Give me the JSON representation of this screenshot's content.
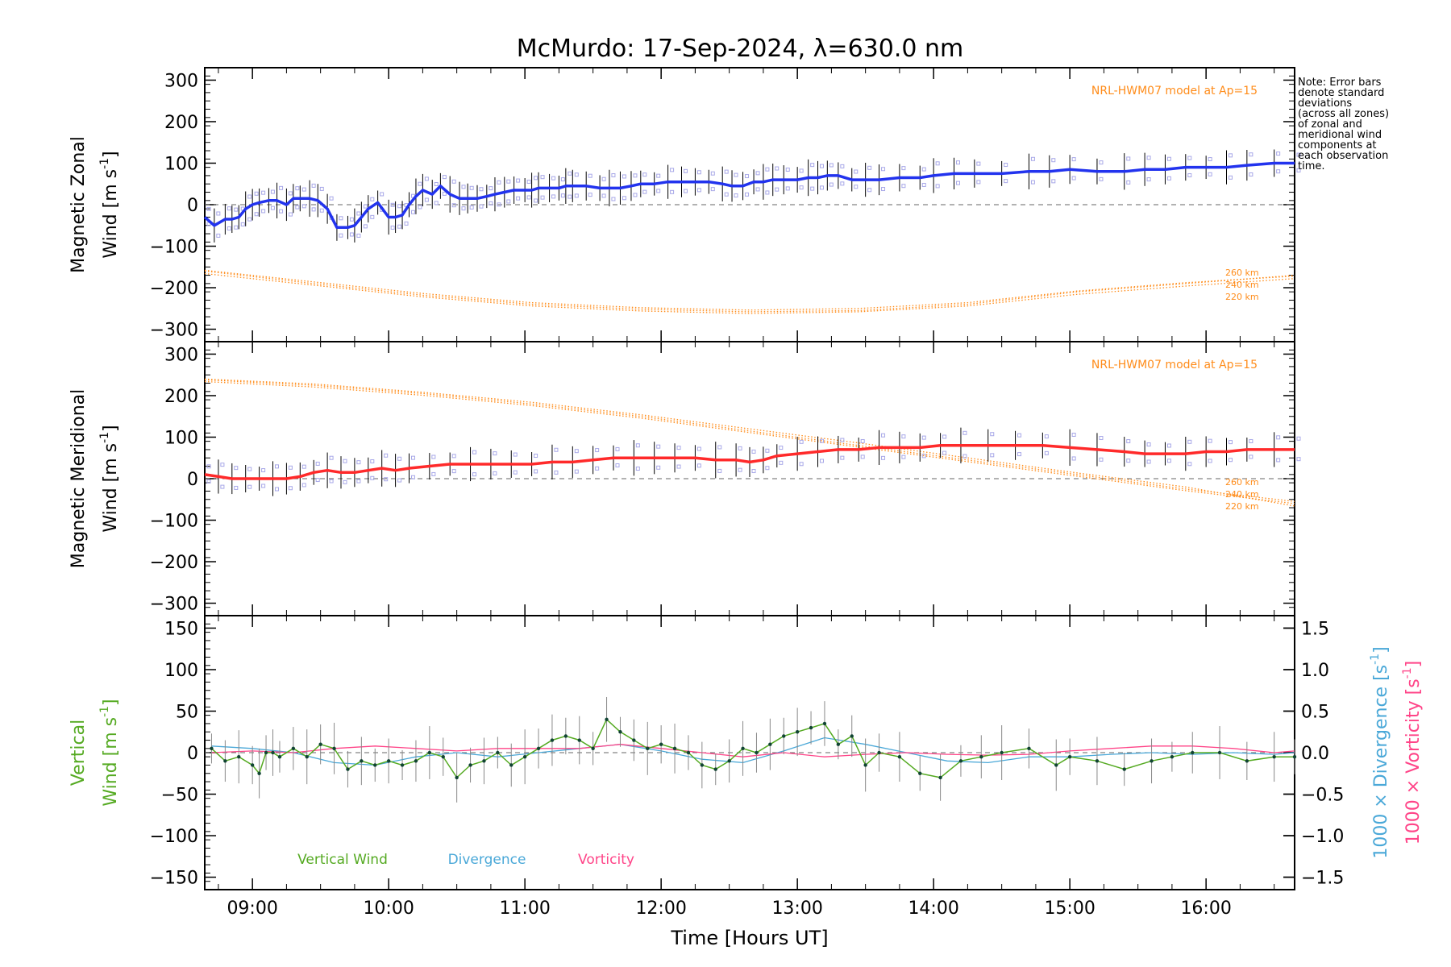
{
  "chart_data": {
    "title": "McMurdo: 17-Sep-2024, λ=630.0 nm",
    "xlabel": "Time [Hours UT]",
    "x_ticks": [
      "09:00",
      "10:00",
      "11:00",
      "12:00",
      "13:00",
      "14:00",
      "15:00",
      "16:00"
    ],
    "x_tick_hours": [
      9,
      10,
      11,
      12,
      13,
      14,
      15,
      16
    ],
    "xlim": [
      8.65,
      16.65
    ],
    "note": "Note: Error bars\ndenote standard\ndeviations\n(across all zones)\nof zonal and\nmeridional wind\ncomponents at\neach observation\ntime.",
    "colors": {
      "zonal": "#2233ee",
      "meridional": "#ff2a2a",
      "model": "#ff8c1a",
      "vertical": "#55aa22",
      "divergence": "#4aa8d8",
      "vorticity": "#ff4488",
      "zone_points": "#a8a8e8",
      "error_bar": "#000000"
    },
    "panels": [
      {
        "id": "zonal",
        "type": "line",
        "ylabel_line1": "Magnetic Zonal",
        "ylabel_line2": "Wind [m s",
        "ylabel_sup": "-1",
        "ylabel_close": "]",
        "ylim": [
          -330,
          330
        ],
        "y_ticks": [
          -300,
          -200,
          -100,
          0,
          100,
          200,
          300
        ],
        "model_label": "NRL-HWM07 model at Ap=15",
        "model_altitudes": [
          "260 km",
          "240 km",
          "220 km"
        ],
        "series": [
          {
            "x": [
              8.65,
              8.72,
              8.8,
              8.85,
              8.9,
              8.95,
              9.0,
              9.05,
              9.12,
              9.18,
              9.25,
              9.3,
              9.35,
              9.42,
              9.48,
              9.55,
              9.62,
              9.7,
              9.75,
              9.8,
              9.85,
              9.92,
              10.0,
              10.05,
              10.1,
              10.15,
              10.2,
              10.25,
              10.32,
              10.38,
              10.45,
              10.52,
              10.58,
              10.65,
              10.72,
              10.78,
              10.85,
              10.92,
              11.0,
              11.05,
              11.1,
              11.18,
              11.25,
              11.3,
              11.35,
              11.45,
              11.55,
              11.62,
              11.7,
              11.78,
              11.85,
              11.95,
              12.05,
              12.15,
              12.25,
              12.35,
              12.45,
              12.52,
              12.6,
              12.68,
              12.75,
              12.82,
              12.9,
              13.0,
              13.08,
              13.15,
              13.22,
              13.3,
              13.4,
              13.5,
              13.6,
              13.75,
              13.9,
              14.0,
              14.15,
              14.3,
              14.5,
              14.7,
              14.85,
              15.0,
              15.2,
              15.4,
              15.55,
              15.7,
              15.85,
              16.0,
              16.15,
              16.3,
              16.5,
              16.65
            ],
            "y": [
              -30,
              -50,
              -35,
              -35,
              -30,
              -10,
              0,
              5,
              10,
              10,
              0,
              15,
              15,
              15,
              10,
              -10,
              -55,
              -55,
              -50,
              -30,
              -10,
              5,
              -30,
              -30,
              -25,
              0,
              20,
              35,
              25,
              45,
              25,
              15,
              15,
              15,
              20,
              25,
              30,
              35,
              35,
              35,
              40,
              40,
              40,
              45,
              45,
              45,
              40,
              40,
              40,
              45,
              50,
              50,
              55,
              55,
              55,
              55,
              50,
              45,
              45,
              55,
              55,
              60,
              60,
              60,
              65,
              65,
              70,
              70,
              60,
              60,
              60,
              65,
              65,
              70,
              75,
              75,
              75,
              80,
              80,
              85,
              80,
              80,
              85,
              85,
              90,
              90,
              90,
              95,
              100,
              100
            ],
            "name": ""
          }
        ],
        "model_curves": [
          {
            "altitude": "260 km",
            "y": [
              -160,
              -190,
              -218,
              -240,
              -252,
              -258,
              -255,
              -240,
              -210,
              -190,
              -170
            ]
          },
          {
            "altitude": "240 km",
            "y": [
              -158,
              -186,
              -214,
              -236,
              -248,
              -254,
              -250,
              -236,
              -208,
              -188,
              -172
            ]
          },
          {
            "altitude": "220 km",
            "y": [
              -166,
              -194,
              -222,
              -244,
              -256,
              -262,
              -258,
              -244,
              -216,
              -196,
              -178
            ]
          }
        ]
      },
      {
        "id": "meridional",
        "type": "line",
        "ylabel_line1": "Magnetic Meridional",
        "ylabel_line2": "Wind [m s",
        "ylabel_sup": "-1",
        "ylabel_close": "]",
        "ylim": [
          -330,
          330
        ],
        "y_ticks": [
          -300,
          -200,
          -100,
          0,
          100,
          200,
          300
        ],
        "model_label": "NRL-HWM07 model at Ap=15",
        "model_altitudes": [
          "260 km",
          "240 km",
          "220 km"
        ],
        "series": [
          {
            "x": [
              8.65,
              8.75,
              8.85,
              8.95,
              9.05,
              9.15,
              9.25,
              9.35,
              9.45,
              9.55,
              9.65,
              9.75,
              9.85,
              9.95,
              10.05,
              10.15,
              10.3,
              10.45,
              10.6,
              10.75,
              10.9,
              11.05,
              11.2,
              11.35,
              11.5,
              11.65,
              11.8,
              11.95,
              12.1,
              12.25,
              12.4,
              12.55,
              12.65,
              12.75,
              12.85,
              13.0,
              13.15,
              13.3,
              13.45,
              13.6,
              13.75,
              13.9,
              14.05,
              14.2,
              14.4,
              14.6,
              14.8,
              15.0,
              15.2,
              15.4,
              15.55,
              15.7,
              15.85,
              16.0,
              16.15,
              16.3,
              16.5,
              16.65
            ],
            "y": [
              10,
              5,
              0,
              0,
              0,
              0,
              0,
              5,
              15,
              20,
              15,
              15,
              20,
              25,
              20,
              25,
              30,
              35,
              35,
              35,
              35,
              35,
              40,
              40,
              45,
              50,
              50,
              50,
              50,
              50,
              45,
              45,
              40,
              45,
              55,
              60,
              65,
              70,
              70,
              75,
              75,
              75,
              80,
              80,
              80,
              80,
              80,
              75,
              70,
              65,
              60,
              60,
              60,
              65,
              65,
              70,
              70,
              70
            ],
            "name": ""
          }
        ],
        "model_curves": [
          {
            "altitude": "260 km",
            "y": [
              238,
              225,
              205,
              180,
              150,
              115,
              80,
              45,
              10,
              -25,
              -55
            ]
          },
          {
            "altitude": "240 km",
            "y": [
              234,
              221,
              201,
              176,
              146,
              111,
              76,
              41,
              6,
              -29,
              -60
            ]
          },
          {
            "altitude": "220 km",
            "y": [
              240,
              228,
              208,
              184,
              154,
              120,
              86,
              50,
              14,
              -20,
              -66
            ]
          }
        ]
      },
      {
        "id": "vertical",
        "type": "line",
        "ylabel_line1": "Vertical",
        "ylabel_line2": "Wind [m s",
        "ylabel_sup": "-1",
        "ylabel_close": "]",
        "ylim": [
          -165,
          165
        ],
        "y_ticks": [
          -150,
          -100,
          -50,
          0,
          50,
          100,
          150
        ],
        "y2lim": [
          -1.65,
          1.65
        ],
        "y2_ticks": [
          -1.5,
          -1.0,
          -0.5,
          0.0,
          0.5,
          1.0,
          1.5
        ],
        "y2_tick_labels": [
          "−1.5",
          "−1.0",
          "−0.5",
          "0.0",
          "0.5",
          "1.0",
          "1.5"
        ],
        "y2_label_divergence": "1000 × Divergence [s",
        "y2_label_vorticity": "1000 × Vorticity [s",
        "y2_sup": "-1",
        "y2_close": "]",
        "legend": [
          "Vertical Wind",
          "Divergence",
          "Vorticity"
        ],
        "series": [
          {
            "name": "Vertical Wind",
            "x": [
              8.7,
              8.8,
              8.9,
              9.0,
              9.05,
              9.1,
              9.15,
              9.2,
              9.3,
              9.4,
              9.5,
              9.6,
              9.7,
              9.8,
              9.9,
              10.0,
              10.1,
              10.2,
              10.3,
              10.4,
              10.5,
              10.6,
              10.7,
              10.8,
              10.9,
              11.0,
              11.1,
              11.2,
              11.3,
              11.4,
              11.5,
              11.6,
              11.7,
              11.8,
              11.9,
              12.0,
              12.1,
              12.2,
              12.3,
              12.4,
              12.5,
              12.6,
              12.7,
              12.8,
              12.9,
              13.0,
              13.1,
              13.2,
              13.3,
              13.4,
              13.5,
              13.6,
              13.75,
              13.9,
              14.05,
              14.2,
              14.35,
              14.5,
              14.7,
              14.9,
              15.0,
              15.2,
              15.4,
              15.6,
              15.75,
              15.9,
              16.1,
              16.3,
              16.5,
              16.65
            ],
            "y": [
              5,
              -10,
              -5,
              -15,
              -25,
              0,
              0,
              -5,
              5,
              -5,
              10,
              5,
              -20,
              -10,
              -15,
              -10,
              -15,
              -10,
              0,
              -5,
              -30,
              -15,
              -10,
              0,
              -15,
              -5,
              5,
              15,
              20,
              15,
              5,
              40,
              25,
              15,
              5,
              10,
              5,
              0,
              -15,
              -20,
              -10,
              5,
              0,
              10,
              20,
              25,
              30,
              35,
              10,
              20,
              -15,
              0,
              -5,
              -25,
              -30,
              -10,
              -5,
              0,
              5,
              -15,
              -5,
              -10,
              -20,
              -10,
              -5,
              0,
              0,
              -10,
              -5,
              -5
            ]
          },
          {
            "name": "Divergence",
            "x": [
              8.7,
              9.0,
              9.3,
              9.6,
              9.9,
              10.2,
              10.5,
              10.8,
              11.1,
              11.4,
              11.7,
              12.0,
              12.3,
              12.6,
              12.9,
              13.2,
              13.5,
              13.8,
              14.1,
              14.4,
              14.7,
              15.0,
              15.3,
              15.6,
              15.9,
              16.2,
              16.5,
              16.65
            ],
            "y": [
              0.08,
              0.05,
              0.0,
              -0.12,
              -0.15,
              -0.05,
              0.0,
              -0.05,
              0.0,
              0.05,
              0.1,
              0.02,
              -0.08,
              -0.12,
              0.02,
              0.18,
              0.1,
              0.0,
              -0.1,
              -0.12,
              -0.05,
              -0.05,
              -0.02,
              0.0,
              -0.02,
              0.0,
              -0.02,
              0.0
            ]
          },
          {
            "name": "Vorticity",
            "x": [
              8.7,
              9.0,
              9.3,
              9.6,
              9.9,
              10.2,
              10.5,
              10.8,
              11.1,
              11.4,
              11.7,
              12.0,
              12.3,
              12.6,
              12.9,
              13.2,
              13.5,
              13.8,
              14.1,
              14.4,
              14.7,
              15.0,
              15.3,
              15.6,
              15.9,
              16.2,
              16.5,
              16.65
            ],
            "y": [
              0.0,
              0.02,
              0.0,
              0.05,
              0.08,
              0.05,
              0.02,
              0.05,
              0.05,
              0.05,
              0.1,
              0.05,
              0.0,
              -0.05,
              0.0,
              -0.05,
              -0.02,
              0.0,
              -0.02,
              -0.03,
              -0.02,
              0.02,
              0.05,
              0.08,
              0.08,
              0.05,
              0.0,
              0.02
            ]
          }
        ]
      }
    ]
  }
}
